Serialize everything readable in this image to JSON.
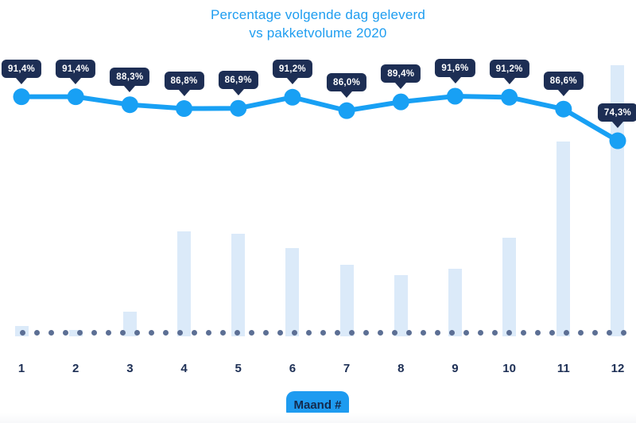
{
  "title": {
    "line1": "Percentage volgende dag geleverd",
    "line2": "vs pakketvolume 2020"
  },
  "x_axis": {
    "label": "Maand #",
    "ticks": [
      "1",
      "2",
      "3",
      "4",
      "5",
      "6",
      "7",
      "8",
      "9",
      "10",
      "11",
      "12"
    ]
  },
  "chart_data": {
    "type": "combo",
    "title": "Percentage volgende dag geleverd vs pakketvolume 2020",
    "xlabel": "Maand #",
    "ylabel": "",
    "categories": [
      "1",
      "2",
      "3",
      "4",
      "5",
      "6",
      "7",
      "8",
      "9",
      "10",
      "11",
      "12"
    ],
    "grid": false,
    "legend": "none",
    "baseline_style": "dotted",
    "series": [
      {
        "name": "Percentage volgende dag geleverd",
        "type": "line",
        "unit": "%",
        "values": [
          91.4,
          91.4,
          88.3,
          86.8,
          86.9,
          91.2,
          86.0,
          89.4,
          91.6,
          91.2,
          86.6,
          74.3
        ],
        "labels": [
          "91,4%",
          "91,4%",
          "88,3%",
          "86,8%",
          "86,9%",
          "91,2%",
          "86,0%",
          "89,4%",
          "91,6%",
          "91,2%",
          "86,6%",
          "74,3%"
        ]
      },
      {
        "name": "Pakketvolume",
        "type": "bar",
        "unit": "relative volume, est. (max month = 100)",
        "values": [
          3.8,
          2.3,
          9.1,
          38.7,
          37.8,
          32.6,
          26.4,
          22.6,
          24.9,
          36.4,
          71.8,
          100
        ]
      }
    ]
  },
  "colors": {
    "title": "#1e9df0",
    "line": "#18a0f4",
    "badge_bg": "#1d2e54",
    "badge_text": "#ffffff",
    "bar": "#dbeaf9",
    "dot": "#5c6f94",
    "axis_text": "#1d2f55",
    "xlabel_bg": "#1e9bf0",
    "xlabel_text": "#142a4d",
    "background": "#ffffff"
  }
}
